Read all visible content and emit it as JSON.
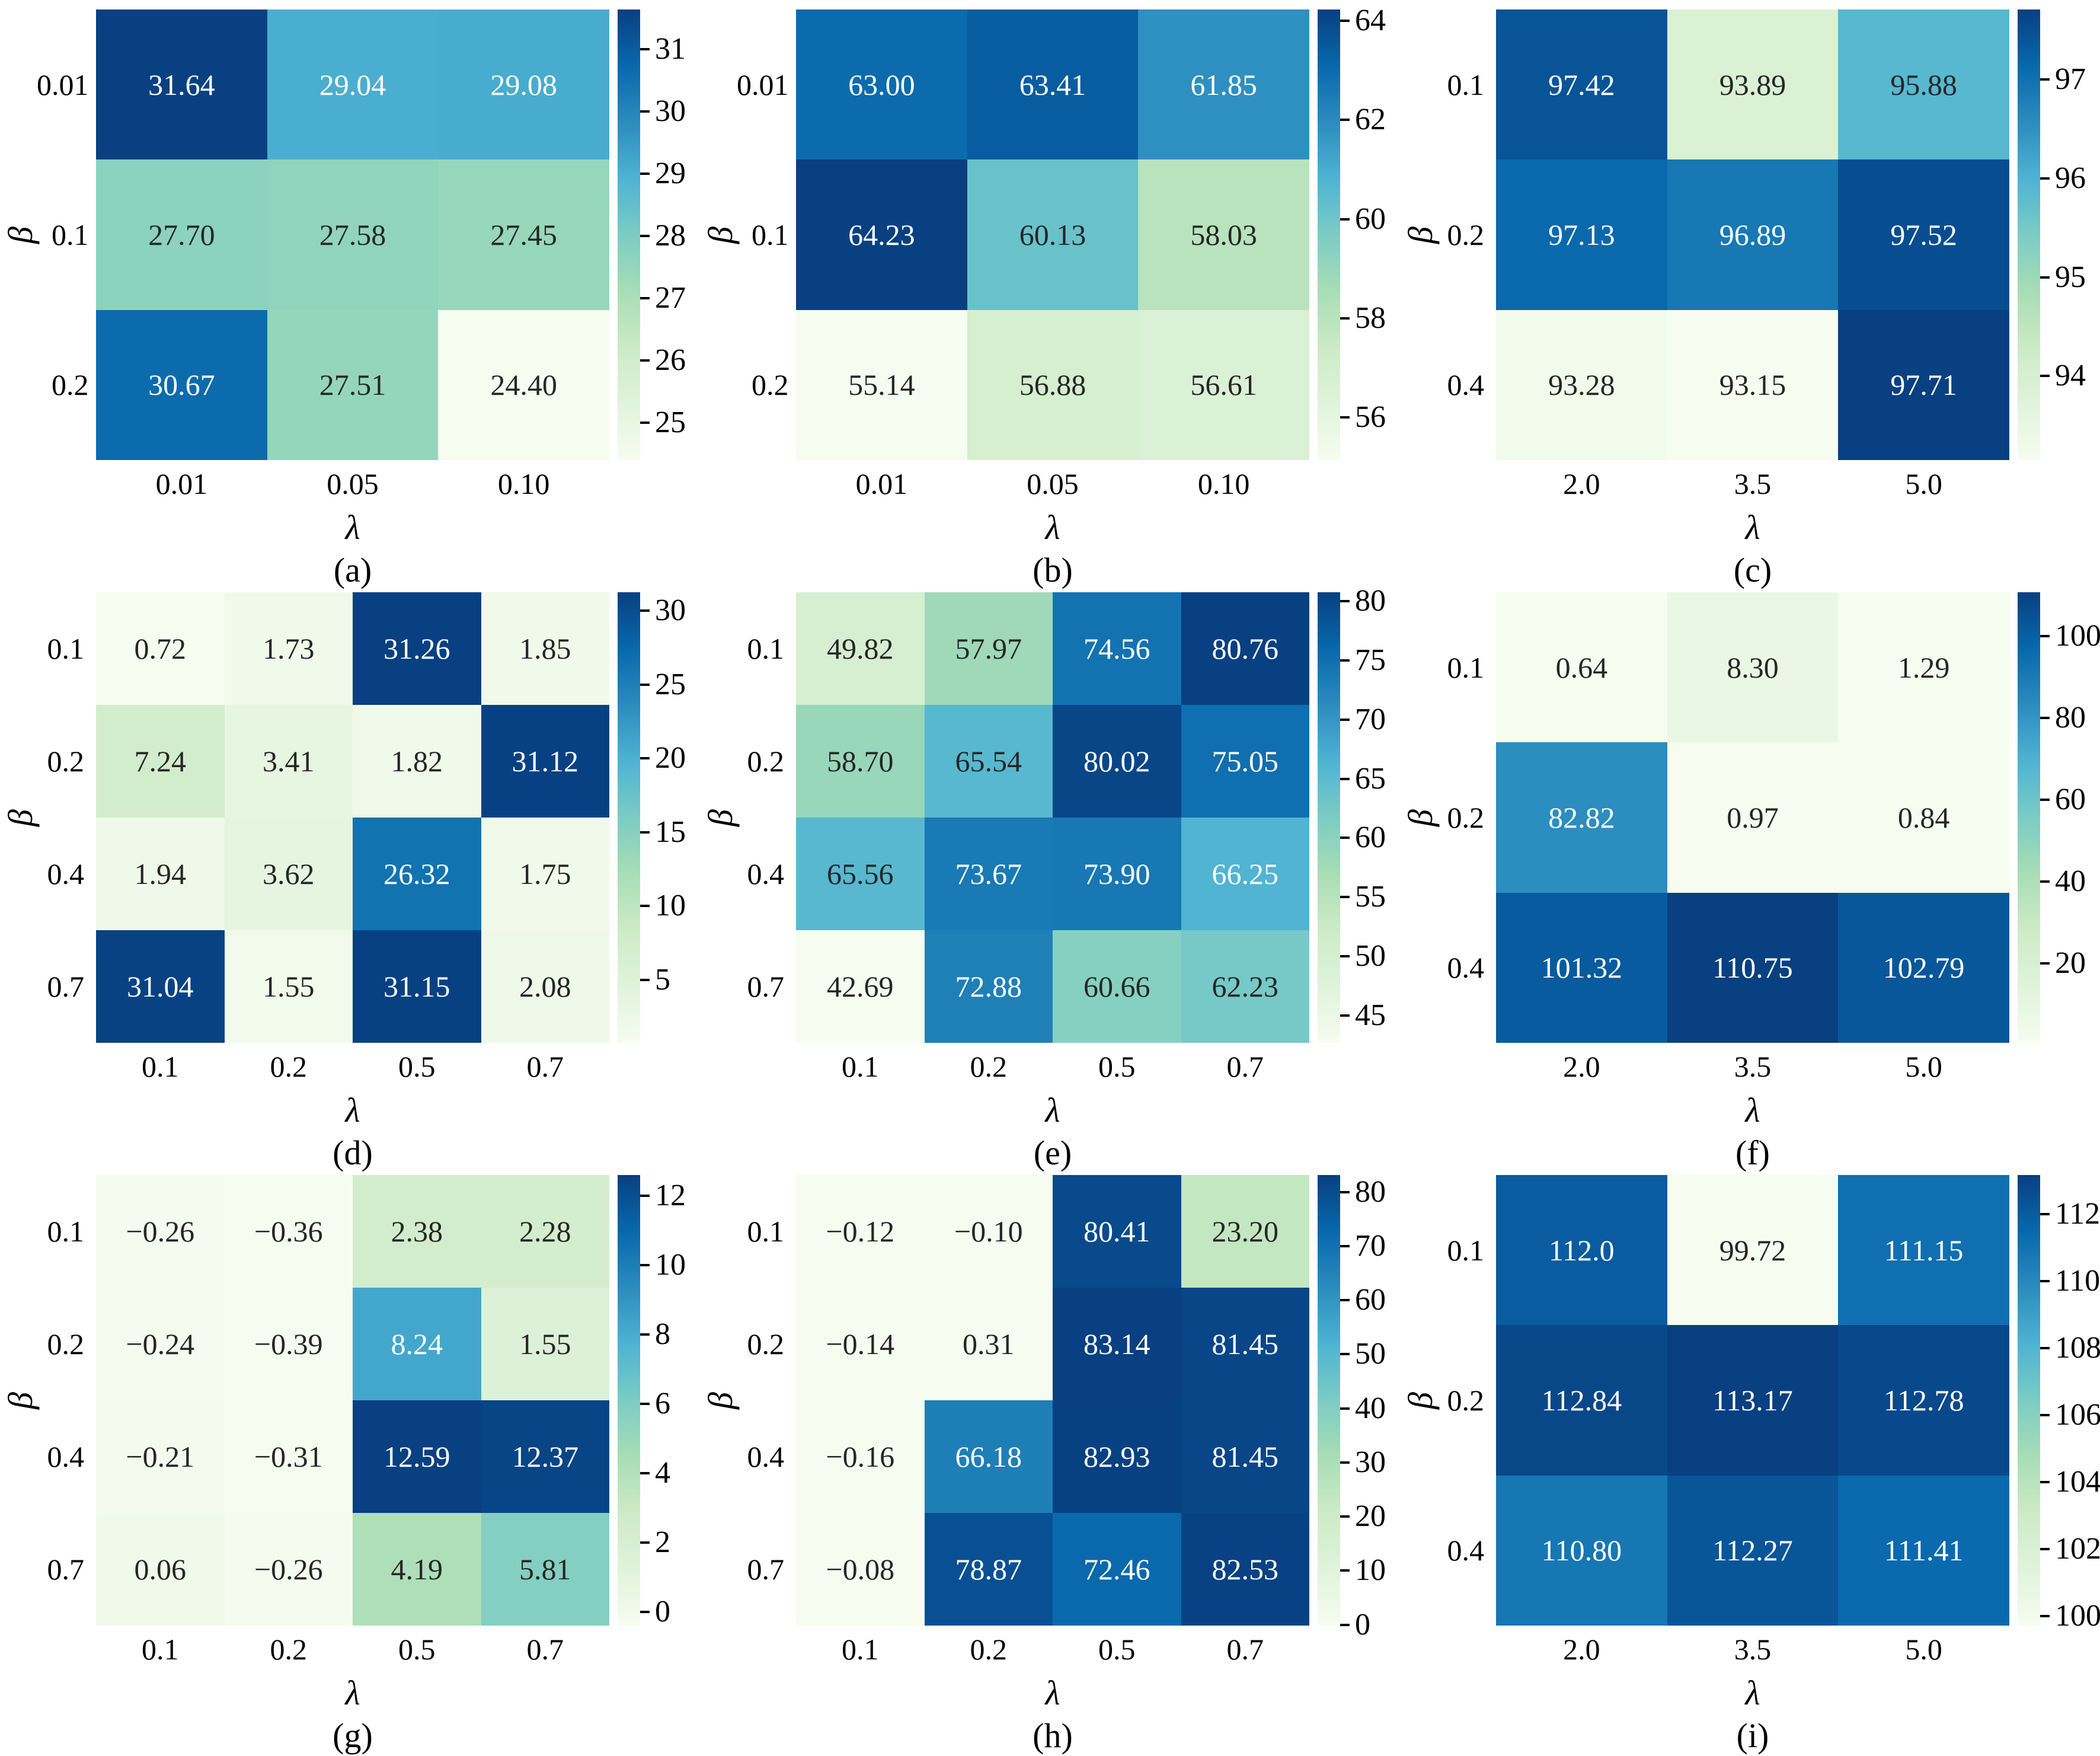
{
  "figure": {
    "background": "#ffffff",
    "text_color": "#000000",
    "annot_dark_text": "#262626",
    "annot_light_text": "#ffffff",
    "colormap_name": "GnBu",
    "colormap_stops": [
      "#f7fcf0",
      "#e0f3db",
      "#ccebc5",
      "#a8ddb5",
      "#7bccc4",
      "#4eb3d3",
      "#2b8cbe",
      "#0868ac",
      "#084081"
    ]
  },
  "chart_data": [
    {
      "type": "heatmap",
      "label": "(a)",
      "xlabel": "λ",
      "ylabel": "β",
      "x": [
        "0.01",
        "0.05",
        "0.10"
      ],
      "y": [
        "0.01",
        "0.1",
        "0.2"
      ],
      "annot": [
        [
          "31.64",
          "29.04",
          "29.08"
        ],
        [
          "27.70",
          "27.58",
          "27.45"
        ],
        [
          "30.67",
          "27.51",
          "24.40"
        ]
      ],
      "values": [
        [
          31.64,
          29.04,
          29.08
        ],
        [
          27.7,
          27.58,
          27.45
        ],
        [
          30.67,
          27.51,
          24.4
        ]
      ],
      "colorbar_ticks": [
        31,
        30,
        29,
        28,
        27,
        26,
        25
      ]
    },
    {
      "type": "heatmap",
      "label": "(b)",
      "xlabel": "λ",
      "ylabel": "β",
      "x": [
        "0.01",
        "0.05",
        "0.10"
      ],
      "y": [
        "0.01",
        "0.1",
        "0.2"
      ],
      "annot": [
        [
          "63.00",
          "63.41",
          "61.85"
        ],
        [
          "64.23",
          "60.13",
          "58.03"
        ],
        [
          "55.14",
          "56.88",
          "56.61"
        ]
      ],
      "values": [
        [
          63.0,
          63.41,
          61.85
        ],
        [
          64.23,
          60.13,
          58.03
        ],
        [
          55.14,
          56.88,
          56.61
        ]
      ],
      "colorbar_ticks": [
        64,
        62,
        60,
        58,
        56
      ]
    },
    {
      "type": "heatmap",
      "label": "(c)",
      "xlabel": "λ",
      "ylabel": "β",
      "x": [
        "2.0",
        "3.5",
        "5.0"
      ],
      "y": [
        "0.1",
        "0.2",
        "0.4"
      ],
      "annot": [
        [
          "97.42",
          "93.89",
          "95.88"
        ],
        [
          "97.13",
          "96.89",
          "97.52"
        ],
        [
          "93.28",
          "93.15",
          "97.71"
        ]
      ],
      "values": [
        [
          97.42,
          93.89,
          95.88
        ],
        [
          97.13,
          96.89,
          97.52
        ],
        [
          93.28,
          93.15,
          97.71
        ]
      ],
      "colorbar_ticks": [
        97,
        96,
        95,
        94
      ]
    },
    {
      "type": "heatmap",
      "label": "(d)",
      "xlabel": "λ",
      "ylabel": "β",
      "x": [
        "0.1",
        "0.2",
        "0.5",
        "0.7"
      ],
      "y": [
        "0.1",
        "0.2",
        "0.4",
        "0.7"
      ],
      "annot": [
        [
          "0.72",
          "1.73",
          "31.26",
          "1.85"
        ],
        [
          "7.24",
          "3.41",
          "1.82",
          "31.12"
        ],
        [
          "1.94",
          "3.62",
          "26.32",
          "1.75"
        ],
        [
          "31.04",
          "1.55",
          "31.15",
          "2.08"
        ]
      ],
      "values": [
        [
          0.72,
          1.73,
          31.26,
          1.85
        ],
        [
          7.24,
          3.41,
          1.82,
          31.12
        ],
        [
          1.94,
          3.62,
          26.32,
          1.75
        ],
        [
          31.04,
          1.55,
          31.15,
          2.08
        ]
      ],
      "colorbar_ticks": [
        30,
        25,
        20,
        15,
        10,
        5
      ]
    },
    {
      "type": "heatmap",
      "label": "(e)",
      "xlabel": "λ",
      "ylabel": "β",
      "x": [
        "0.1",
        "0.2",
        "0.5",
        "0.7"
      ],
      "y": [
        "0.1",
        "0.2",
        "0.4",
        "0.7"
      ],
      "annot": [
        [
          "49.82",
          "57.97",
          "74.56",
          "80.76"
        ],
        [
          "58.70",
          "65.54",
          "80.02",
          "75.05"
        ],
        [
          "65.56",
          "73.67",
          "73.90",
          "66.25"
        ],
        [
          "42.69",
          "72.88",
          "60.66",
          "62.23"
        ]
      ],
      "values": [
        [
          49.82,
          57.97,
          74.56,
          80.76
        ],
        [
          58.7,
          65.54,
          80.02,
          75.05
        ],
        [
          65.56,
          73.67,
          73.9,
          66.25
        ],
        [
          42.69,
          72.88,
          60.66,
          62.23
        ]
      ],
      "colorbar_ticks": [
        80,
        75,
        70,
        65,
        60,
        55,
        50,
        45
      ]
    },
    {
      "type": "heatmap",
      "label": "(f)",
      "xlabel": "λ",
      "ylabel": "β",
      "x": [
        "2.0",
        "3.5",
        "5.0"
      ],
      "y": [
        "0.1",
        "0.2",
        "0.4"
      ],
      "annot": [
        [
          "0.64",
          "8.30",
          "1.29"
        ],
        [
          "82.82",
          "0.97",
          "0.84"
        ],
        [
          "101.32",
          "110.75",
          "102.79"
        ]
      ],
      "values": [
        [
          0.64,
          8.3,
          1.29
        ],
        [
          82.82,
          0.97,
          0.84
        ],
        [
          101.32,
          110.75,
          102.79
        ]
      ],
      "colorbar_ticks": [
        100,
        80,
        60,
        40,
        20
      ]
    },
    {
      "type": "heatmap",
      "label": "(g)",
      "xlabel": "λ",
      "ylabel": "β",
      "x": [
        "0.1",
        "0.2",
        "0.5",
        "0.7"
      ],
      "y": [
        "0.1",
        "0.2",
        "0.4",
        "0.7"
      ],
      "annot": [
        [
          "−0.26",
          "−0.36",
          "2.38",
          "2.28"
        ],
        [
          "−0.24",
          "−0.39",
          "8.24",
          "1.55"
        ],
        [
          "−0.21",
          "−0.31",
          "12.59",
          "12.37"
        ],
        [
          "0.06",
          "−0.26",
          "4.19",
          "5.81"
        ]
      ],
      "values": [
        [
          -0.26,
          -0.36,
          2.38,
          2.28
        ],
        [
          -0.24,
          -0.39,
          8.24,
          1.55
        ],
        [
          -0.21,
          -0.31,
          12.59,
          12.37
        ],
        [
          0.06,
          -0.26,
          4.19,
          5.81
        ]
      ],
      "colorbar_ticks": [
        12,
        10,
        8,
        6,
        4,
        2,
        0
      ]
    },
    {
      "type": "heatmap",
      "label": "(h)",
      "xlabel": "λ",
      "ylabel": "β",
      "x": [
        "0.1",
        "0.2",
        "0.5",
        "0.7"
      ],
      "y": [
        "0.1",
        "0.2",
        "0.4",
        "0.7"
      ],
      "annot": [
        [
          "−0.12",
          "−0.10",
          "80.41",
          "23.20"
        ],
        [
          "−0.14",
          "0.31",
          "83.14",
          "81.45"
        ],
        [
          "−0.16",
          "66.18",
          "82.93",
          "81.45"
        ],
        [
          "−0.08",
          "78.87",
          "72.46",
          "82.53"
        ]
      ],
      "values": [
        [
          -0.12,
          -0.1,
          80.41,
          23.2
        ],
        [
          -0.14,
          0.31,
          83.14,
          81.45
        ],
        [
          -0.16,
          66.18,
          82.93,
          81.45
        ],
        [
          -0.08,
          78.87,
          72.46,
          82.53
        ]
      ],
      "colorbar_ticks": [
        80,
        70,
        60,
        50,
        40,
        30,
        20,
        10,
        0
      ]
    },
    {
      "type": "heatmap",
      "label": "(i)",
      "xlabel": "λ",
      "ylabel": "β",
      "x": [
        "2.0",
        "3.5",
        "5.0"
      ],
      "y": [
        "0.1",
        "0.2",
        "0.4"
      ],
      "annot": [
        [
          "112.0",
          "99.72",
          "111.15"
        ],
        [
          "112.84",
          "113.17",
          "112.78"
        ],
        [
          "110.80",
          "112.27",
          "111.41"
        ]
      ],
      "values": [
        [
          112.0,
          99.72,
          111.15
        ],
        [
          112.84,
          113.17,
          112.78
        ],
        [
          110.8,
          112.27,
          111.41
        ]
      ],
      "colorbar_ticks": [
        112,
        110,
        108,
        106,
        104,
        102,
        100
      ]
    }
  ]
}
